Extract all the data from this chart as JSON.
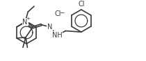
{
  "bg_color": "#ffffff",
  "line_color": "#3a3a3a",
  "line_width": 1.2,
  "font_size": 6.5,
  "fig_width": 2.1,
  "fig_height": 0.88,
  "dpi": 100,
  "xlim": [
    0,
    21
  ],
  "ylim": [
    -4.5,
    5.5
  ]
}
